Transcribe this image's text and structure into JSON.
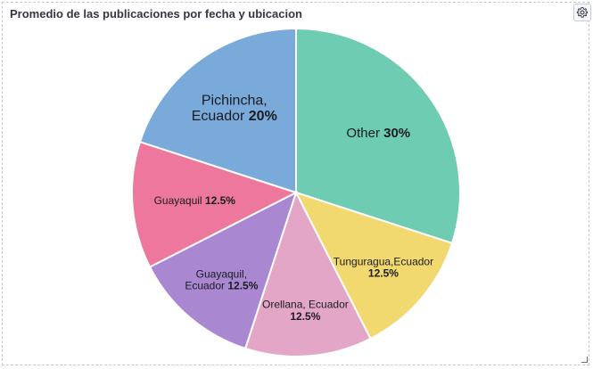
{
  "panel": {
    "title": "Promedio de las publicaciones por fecha y ubicacion",
    "settings_icon": "gear-icon"
  },
  "chart_data": {
    "type": "pie",
    "title": "Promedio de las publicaciones por fecha y ubicacion",
    "slices": [
      {
        "label_lines": [
          "Other"
        ],
        "pct_text": "30%",
        "value": 30,
        "color": "#6dccb1"
      },
      {
        "label_lines": [
          "Tunguragua,Ecuador"
        ],
        "pct_text": "12.5%",
        "value": 12.5,
        "color": "#f1d86f"
      },
      {
        "label_lines": [
          "Orellana, Ecuador"
        ],
        "pct_text": "12.5%",
        "value": 12.5,
        "color": "#e4a6c7"
      },
      {
        "label_lines": [
          "Guayaquil,",
          "Ecuador"
        ],
        "pct_text": "12.5%",
        "value": 12.5,
        "color": "#a987d1"
      },
      {
        "label_lines": [
          "Guayaquil"
        ],
        "pct_text": "12.5%",
        "value": 12.5,
        "color": "#ee789d"
      },
      {
        "label_lines": [
          "Pichincha,",
          "Ecuador"
        ],
        "pct_text": "20%",
        "value": 20,
        "color": "#79aad9"
      }
    ]
  }
}
